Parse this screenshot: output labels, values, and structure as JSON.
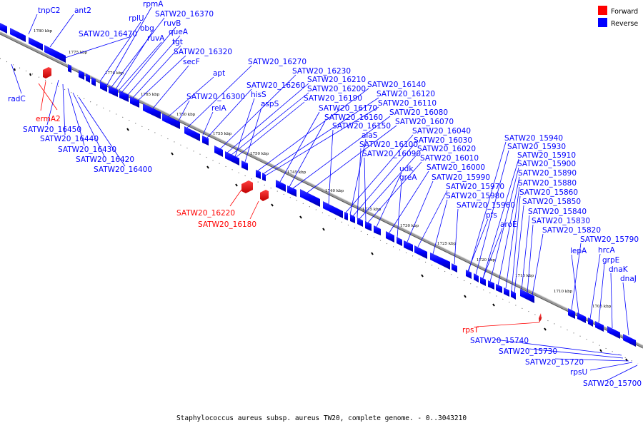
{
  "caption": "Staphylococcus aureus subsp. aureus TW20, complete genome. - 0..3043210",
  "colors": {
    "forward": "#ff0000",
    "reverse": "#0000ff",
    "backbone": "#888888"
  },
  "legend": [
    {
      "label": "Forward",
      "color": "#ff0000"
    },
    {
      "label": "Reverse",
      "color": "#0000ff"
    }
  ],
  "ticks": [
    "1780 kbp",
    "1775 kbp",
    "1770 kbp",
    "1765 kbp",
    "1760 kbp",
    "1755 kbp",
    "1750 kbp",
    "1745 kbp",
    "1740 kbp",
    "1735 kbp",
    "1730 kbp",
    "1725 kbp",
    "1720 kbp",
    "1715 kbp",
    "1710 kbp",
    "1705 kbp"
  ],
  "genes_reverse": [
    "tnpC2",
    "ant2",
    "rpmA",
    "rplU",
    "SATW20_16370",
    "SATW20_16470",
    "obg",
    "ruvB",
    "queA",
    "ruvA",
    "tgt",
    "SATW20_16320",
    "secF",
    "apt",
    "SATW20_16270",
    "SATW20_16300",
    "SATW20_16230",
    "SATW20_16210",
    "SATW20_16260",
    "SATW20_16200",
    "relA",
    "hisS",
    "SATW20_16190",
    "aspS",
    "SATW20_16140",
    "SATW20_16120",
    "SATW20_16110",
    "SATW20_16170",
    "SATW20_16160",
    "SATW20_16080",
    "SATW20_16070",
    "SATW20_16150",
    "SATW20_16040",
    "alaS",
    "SATW20_16030",
    "SATW20_16100",
    "SATW20_16020",
    "SATW20_16090",
    "SATW20_16010",
    "udk",
    "SATW20_16000",
    "greA",
    "SATW20_15990",
    "SATW20_15940",
    "SATW20_15930",
    "SATW20_15970",
    "SATW20_15910",
    "SATW20_15980",
    "SATW20_15900",
    "SATW20_15890",
    "SATW20_15960",
    "SATW20_15880",
    "pfs",
    "SATW20_15860",
    "SATW20_15850",
    "aroE",
    "SATW20_15840",
    "SATW20_15830",
    "SATW20_15820",
    "SATW20_15790",
    "lepA",
    "hrcA",
    "grpE",
    "dnaK",
    "dnaJ",
    "radC",
    "SATW20_16450",
    "SATW20_16440",
    "SATW20_16430",
    "SATW20_16420",
    "SATW20_16400",
    "SATW20_15740",
    "SATW20_15730",
    "SATW20_15720",
    "rpsU",
    "SATW20_15700"
  ],
  "genes_forward": [
    "ermA2",
    "SATW20_16220",
    "SATW20_16180",
    "rpsT"
  ]
}
